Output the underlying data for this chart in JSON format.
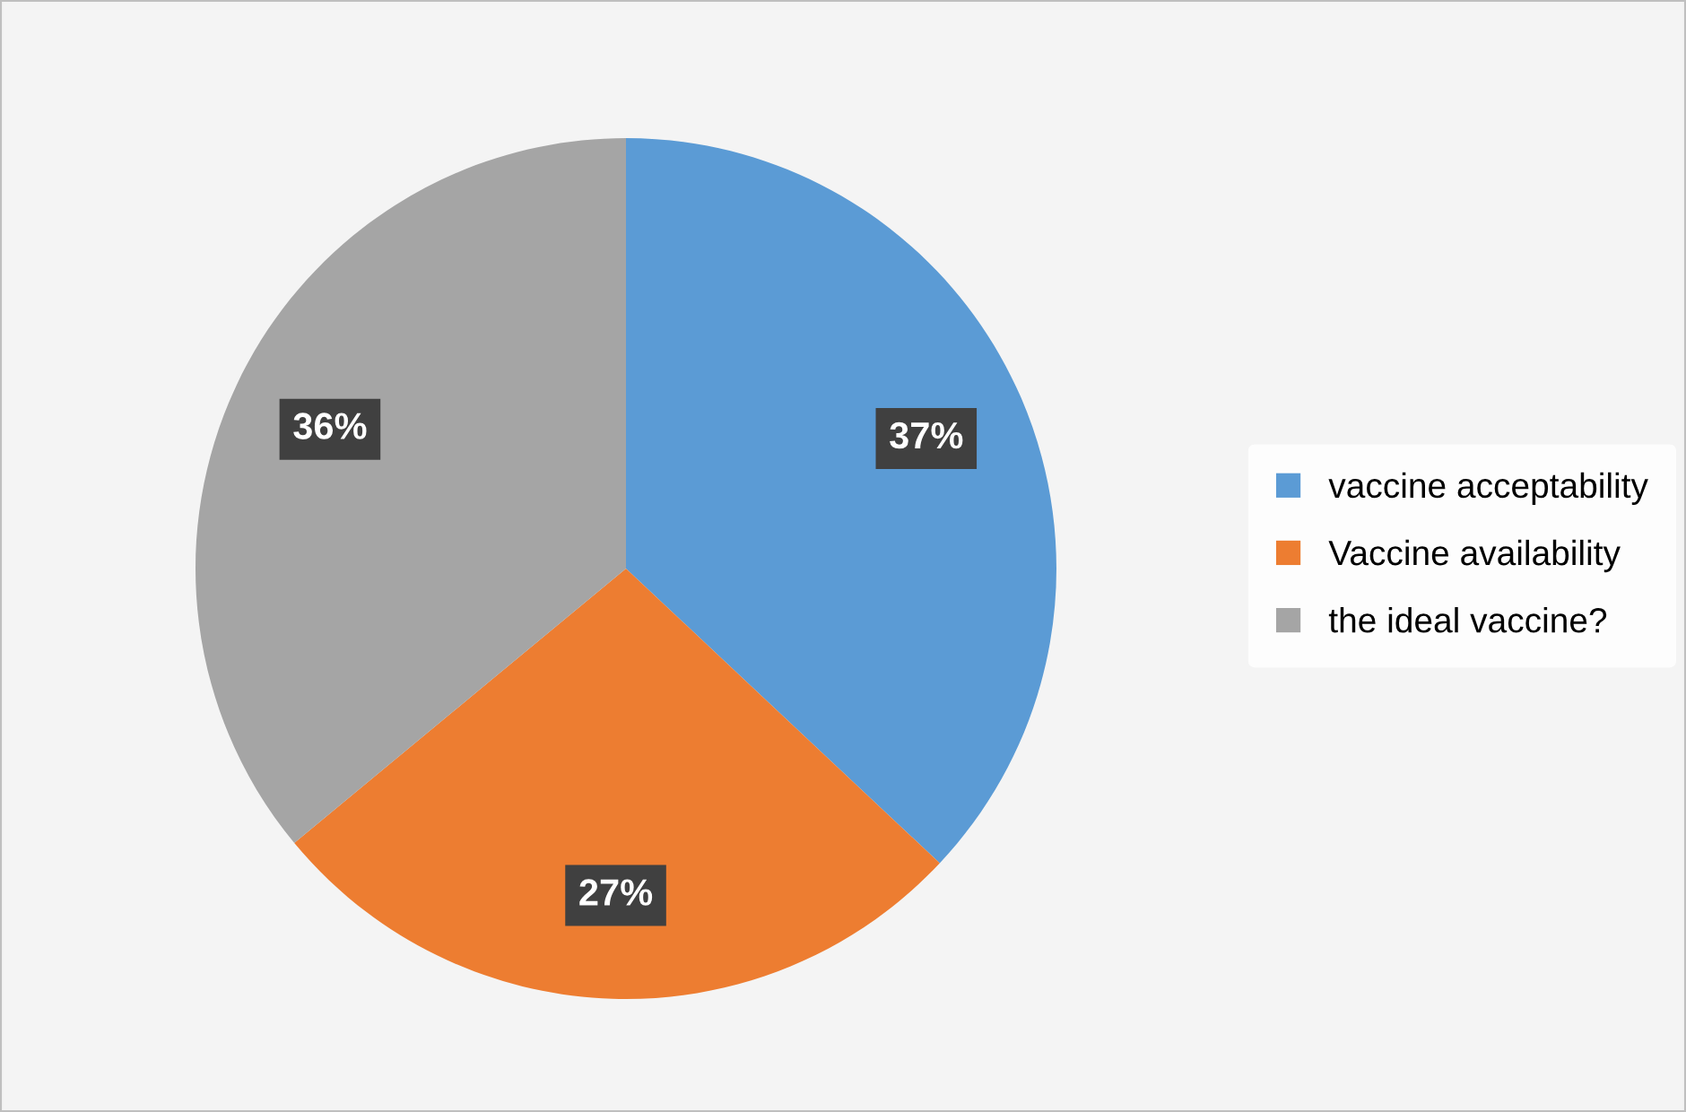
{
  "chart_data": {
    "type": "pie",
    "categories": [
      "vaccine acceptability",
      "Vaccine availability",
      "the ideal vaccine?"
    ],
    "values": [
      37,
      27,
      36
    ],
    "colors": [
      "#5b9bd5",
      "#ed7d31",
      "#a5a5a5"
    ],
    "value_labels": [
      "37%",
      "27%",
      "36%"
    ],
    "legend": "right"
  }
}
